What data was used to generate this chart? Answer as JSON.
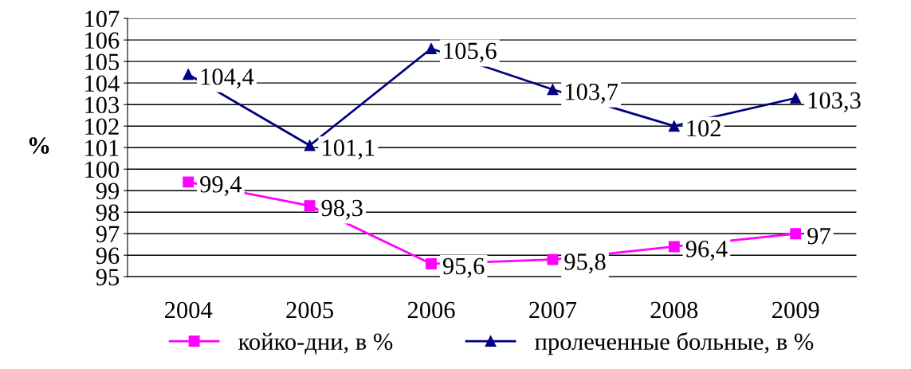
{
  "chart_data": {
    "type": "line",
    "ylabel": "%",
    "categories": [
      "2004",
      "2005",
      "2006",
      "2007",
      "2008",
      "2009"
    ],
    "series": [
      {
        "name": "койко-дни, в %",
        "color": "#ff00ff",
        "marker": "square",
        "values": [
          99.4,
          98.3,
          95.6,
          95.8,
          96.4,
          97
        ],
        "value_labels": [
          "99,4",
          "98,3",
          "95,6",
          "95,8",
          "96,4",
          "97"
        ]
      },
      {
        "name": "пролеченные больные, в %",
        "color": "#000080",
        "marker": "triangle",
        "values": [
          104.4,
          101.1,
          105.6,
          103.7,
          102,
          103.3
        ],
        "value_labels": [
          "104,4",
          "101,1",
          "105,6",
          "103,7",
          "102",
          "103,3"
        ]
      }
    ],
    "ylim": [
      95,
      107
    ],
    "yticks": [
      95,
      96,
      97,
      98,
      99,
      100,
      101,
      102,
      103,
      104,
      105,
      106,
      107
    ],
    "grid": "y",
    "legend": "bottom",
    "line_style": "solid"
  }
}
